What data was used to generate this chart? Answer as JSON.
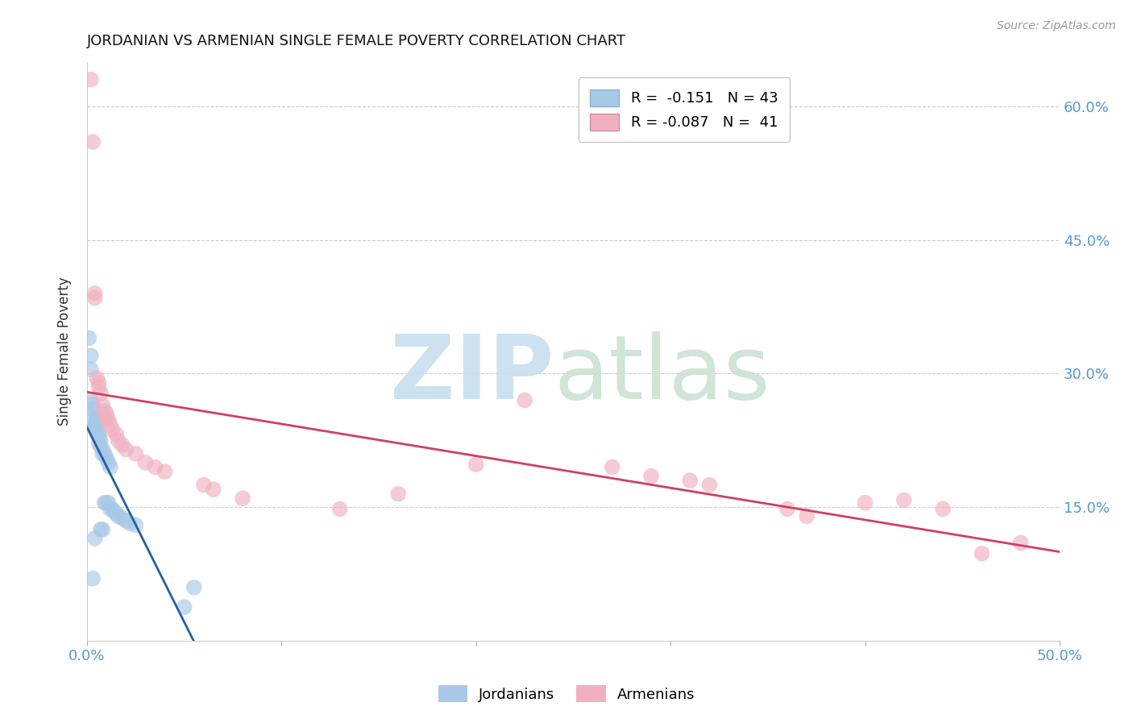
{
  "title": "JORDANIAN VS ARMENIAN SINGLE FEMALE POVERTY CORRELATION CHART",
  "source": "Source: ZipAtlas.com",
  "ylabel": "Single Female Poverty",
  "xlim": [
    0.0,
    0.5
  ],
  "ylim": [
    0.0,
    0.65
  ],
  "xtick_positions": [
    0.0,
    0.1,
    0.2,
    0.3,
    0.4,
    0.5
  ],
  "xtick_labels": [
    "0.0%",
    "",
    "",
    "",
    "",
    "50.0%"
  ],
  "ytick_labels": [
    "15.0%",
    "30.0%",
    "45.0%",
    "60.0%"
  ],
  "ytick_positions": [
    0.15,
    0.3,
    0.45,
    0.6
  ],
  "jordanian_color": "#a8c8e8",
  "armenian_color": "#f0b0c0",
  "jordan_trend_color": "#2060a0",
  "armenia_trend_color": "#d04060",
  "background_color": "#ffffff",
  "jordanian_x": [
    0.001,
    0.002,
    0.002,
    0.002,
    0.003,
    0.003,
    0.003,
    0.003,
    0.004,
    0.004,
    0.004,
    0.004,
    0.005,
    0.005,
    0.005,
    0.005,
    0.006,
    0.006,
    0.006,
    0.007,
    0.007,
    0.007,
    0.008,
    0.008,
    0.008,
    0.009,
    0.009,
    0.01,
    0.01,
    0.011,
    0.011,
    0.012,
    0.012,
    0.013,
    0.014,
    0.015,
    0.016,
    0.018,
    0.02,
    0.022,
    0.025,
    0.05,
    0.055
  ],
  "jordanian_y": [
    0.34,
    0.32,
    0.305,
    0.27,
    0.265,
    0.26,
    0.248,
    0.07,
    0.258,
    0.245,
    0.24,
    0.115,
    0.25,
    0.245,
    0.24,
    0.235,
    0.235,
    0.228,
    0.222,
    0.225,
    0.218,
    0.125,
    0.215,
    0.21,
    0.125,
    0.21,
    0.155,
    0.205,
    0.155,
    0.2,
    0.155,
    0.195,
    0.148,
    0.148,
    0.145,
    0.143,
    0.14,
    0.138,
    0.135,
    0.132,
    0.13,
    0.038,
    0.06
  ],
  "armenian_x": [
    0.002,
    0.003,
    0.004,
    0.004,
    0.005,
    0.006,
    0.006,
    0.007,
    0.008,
    0.009,
    0.01,
    0.01,
    0.011,
    0.012,
    0.013,
    0.015,
    0.016,
    0.018,
    0.02,
    0.025,
    0.03,
    0.035,
    0.04,
    0.06,
    0.065,
    0.08,
    0.13,
    0.16,
    0.2,
    0.225,
    0.27,
    0.29,
    0.32,
    0.36,
    0.4,
    0.42,
    0.44,
    0.46,
    0.31,
    0.37,
    0.48
  ],
  "armenian_y": [
    0.63,
    0.56,
    0.39,
    0.385,
    0.295,
    0.29,
    0.285,
    0.278,
    0.265,
    0.258,
    0.255,
    0.25,
    0.248,
    0.242,
    0.237,
    0.232,
    0.225,
    0.22,
    0.215,
    0.21,
    0.2,
    0.195,
    0.19,
    0.175,
    0.17,
    0.16,
    0.148,
    0.165,
    0.198,
    0.27,
    0.195,
    0.185,
    0.175,
    0.148,
    0.155,
    0.158,
    0.148,
    0.098,
    0.18,
    0.14,
    0.11
  ]
}
